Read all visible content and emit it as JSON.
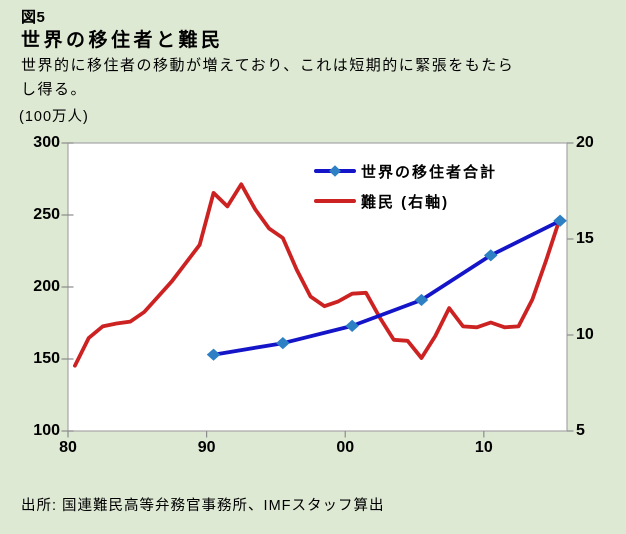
{
  "figure": {
    "label": "図5",
    "title": "世界の移住者と難民",
    "subtitle": "世界的に移住者の移動が増えており、これは短期的に緊張をもたら\nし得る。",
    "source": "出所: 国連難民高等弁務官事務所、IMFスタッフ算出"
  },
  "colors": {
    "background": "#DEE9D4",
    "plot_background": "#FFFFFF",
    "plot_border": "#A6A6A6",
    "tick": "#8C8C8C",
    "migrants_line": "#1414C8",
    "migrants_marker": "#2E80C4",
    "refugees_line": "#CC2222",
    "text": "#000000"
  },
  "chart_data": {
    "type": "line",
    "title": "世界の移住者と難民",
    "years": [
      1980,
      1981,
      1982,
      1983,
      1984,
      1985,
      1986,
      1987,
      1988,
      1989,
      1990,
      1991,
      1992,
      1993,
      1994,
      1995,
      1996,
      1997,
      1998,
      1999,
      2000,
      2001,
      2002,
      2003,
      2004,
      2005,
      2006,
      2007,
      2008,
      2009,
      2010,
      2011,
      2012,
      2013,
      2014,
      2015
    ],
    "left_axis": {
      "label": "(100万人)",
      "min": 100,
      "max": 300,
      "tick_values": [
        300,
        250,
        200,
        150,
        100
      ],
      "tick_labels": [
        "300",
        "250",
        "200",
        "150",
        "100"
      ]
    },
    "right_axis": {
      "min": 5,
      "max": 20,
      "tick_values": [
        20,
        15,
        10,
        5
      ],
      "tick_labels": [
        "20",
        "15",
        "10",
        "5"
      ]
    },
    "x_ticks": {
      "years": [
        1980,
        1990,
        2000,
        2010
      ],
      "labels": [
        "80",
        "90",
        "00",
        "10"
      ]
    },
    "grid": false,
    "legend_position": "top-right-inside",
    "series": [
      {
        "name": "世界の移住者合計",
        "axis": "left",
        "marker": "diamond",
        "x": [
          1990,
          1995,
          2000,
          2005,
          2010,
          2015
        ],
        "values": [
          153,
          161,
          173,
          191,
          222,
          246
        ]
      },
      {
        "name": "難民 (右軸)",
        "axis": "right",
        "marker": "none",
        "x": [
          1980,
          1981,
          1982,
          1983,
          1984,
          1985,
          1986,
          1987,
          1988,
          1989,
          1990,
          1991,
          1992,
          1993,
          1994,
          1995,
          1996,
          1997,
          1998,
          1999,
          2000,
          2001,
          2002,
          2003,
          2004,
          2005,
          2006,
          2007,
          2008,
          2009,
          2010,
          2011,
          2012,
          2013,
          2014,
          2015
        ],
        "values": [
          8.4,
          9.85,
          10.45,
          10.6,
          10.7,
          11.2,
          12.0,
          12.8,
          13.75,
          14.7,
          17.4,
          16.7,
          17.85,
          16.55,
          15.55,
          15.05,
          13.4,
          12.0,
          11.5,
          11.75,
          12.15,
          12.2,
          10.9,
          9.75,
          9.7,
          8.8,
          9.95,
          11.4,
          10.45,
          10.4,
          10.65,
          10.4,
          10.45,
          11.85,
          13.9,
          16.1
        ]
      }
    ]
  }
}
